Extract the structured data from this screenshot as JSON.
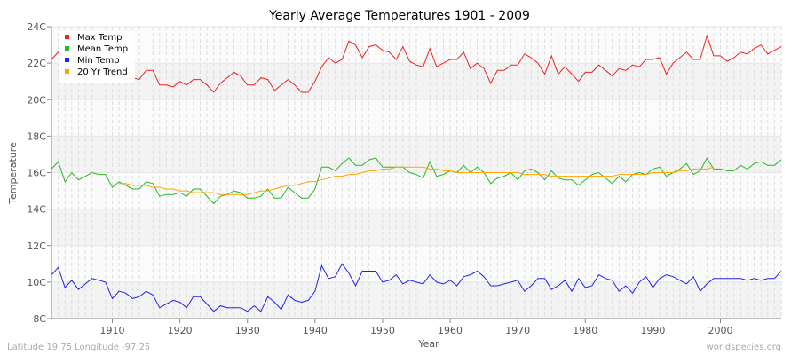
{
  "chart_data": {
    "type": "line",
    "title": "Yearly Average Temperatures 1901 - 2009",
    "xlabel": "Year",
    "ylabel": "Temperature",
    "xlim": [
      1901,
      2009
    ],
    "ylim": [
      8,
      24
    ],
    "x_ticks": [
      1910,
      1920,
      1930,
      1940,
      1950,
      1960,
      1970,
      1980,
      1990,
      2000
    ],
    "y_ticks": [
      8,
      10,
      12,
      14,
      16,
      18,
      20,
      22,
      24
    ],
    "y_tick_labels": [
      "8C",
      "10C",
      "12C",
      "14C",
      "16C",
      "18C",
      "20C",
      "22C",
      "24C"
    ],
    "grid": true,
    "legend_position": "top-left",
    "start_year": 1901,
    "series": [
      {
        "name": "Max Temp",
        "color": "#ee2222",
        "start": 1901,
        "values": [
          22.2,
          22.6,
          22.4,
          22.2,
          22.1,
          22.0,
          21.8,
          21.6,
          21.5,
          21.3,
          21.2,
          21.1,
          21.2,
          21.1,
          21.6,
          21.6,
          20.8,
          20.8,
          20.7,
          21.0,
          20.8,
          21.1,
          21.1,
          20.8,
          20.4,
          20.9,
          21.2,
          21.5,
          21.3,
          20.8,
          20.8,
          21.2,
          21.1,
          20.5,
          20.8,
          21.1,
          20.8,
          20.4,
          20.4,
          21.0,
          21.8,
          22.3,
          22.0,
          22.2,
          23.2,
          23.0,
          22.3,
          22.9,
          23.0,
          22.7,
          22.6,
          22.2,
          22.9,
          22.1,
          21.9,
          21.8,
          22.8,
          21.8,
          22.0,
          22.2,
          22.2,
          22.6,
          21.7,
          22.0,
          21.7,
          20.9,
          21.6,
          21.6,
          21.9,
          21.9,
          22.5,
          22.3,
          22.0,
          21.4,
          22.4,
          21.4,
          21.8,
          21.4,
          21.0,
          21.5,
          21.5,
          21.9,
          21.6,
          21.3,
          21.7,
          21.6,
          21.9,
          21.8,
          22.2,
          22.2,
          22.3,
          21.4,
          22.0,
          22.3,
          22.6,
          22.2,
          22.2,
          23.5,
          22.4,
          22.4,
          22.1,
          22.3,
          22.6,
          22.5,
          22.8,
          23.0,
          22.5,
          22.7,
          22.9
        ]
      },
      {
        "name": "Mean Temp",
        "color": "#22bb22",
        "start": 1901,
        "values": [
          16.2,
          16.6,
          15.5,
          16.0,
          15.6,
          15.8,
          16.0,
          15.9,
          15.9,
          15.2,
          15.5,
          15.3,
          15.1,
          15.1,
          15.5,
          15.4,
          14.7,
          14.8,
          14.8,
          14.9,
          14.7,
          15.1,
          15.1,
          14.7,
          14.3,
          14.7,
          14.8,
          15.0,
          14.9,
          14.6,
          14.6,
          14.7,
          15.1,
          14.6,
          14.6,
          15.2,
          14.9,
          14.6,
          14.6,
          15.1,
          16.3,
          16.3,
          16.1,
          16.5,
          16.8,
          16.4,
          16.4,
          16.7,
          16.8,
          16.3,
          16.3,
          16.3,
          16.3,
          16.0,
          15.9,
          15.7,
          16.6,
          15.8,
          15.9,
          16.1,
          16.0,
          16.4,
          16.0,
          16.3,
          16.0,
          15.4,
          15.7,
          15.8,
          16.0,
          15.6,
          16.1,
          16.2,
          16.0,
          15.6,
          16.1,
          15.7,
          15.6,
          15.6,
          15.3,
          15.6,
          15.9,
          16.0,
          15.7,
          15.4,
          15.8,
          15.5,
          15.9,
          16.0,
          15.9,
          16.2,
          16.3,
          15.8,
          16.0,
          16.2,
          16.5,
          15.9,
          16.1,
          16.8,
          16.2,
          16.2,
          16.1,
          16.1,
          16.4,
          16.2,
          16.5,
          16.6,
          16.4,
          16.4,
          16.7
        ]
      },
      {
        "name": "Min Temp",
        "color": "#2222ee",
        "start": 1901,
        "values": [
          10.4,
          10.8,
          9.7,
          10.1,
          9.6,
          9.9,
          10.2,
          10.1,
          10.0,
          9.1,
          9.5,
          9.4,
          9.1,
          9.2,
          9.5,
          9.3,
          8.6,
          8.8,
          9.0,
          8.9,
          8.6,
          9.2,
          9.2,
          8.8,
          8.4,
          8.7,
          8.6,
          8.6,
          8.6,
          8.4,
          8.7,
          8.4,
          9.2,
          8.9,
          8.5,
          9.3,
          9.0,
          8.9,
          9.0,
          9.5,
          10.9,
          10.2,
          10.3,
          11.0,
          10.5,
          9.8,
          10.6,
          10.6,
          10.6,
          10.0,
          10.1,
          10.4,
          9.9,
          10.1,
          10.0,
          9.9,
          10.4,
          10.0,
          9.9,
          10.1,
          9.8,
          10.3,
          10.4,
          10.6,
          10.3,
          9.8,
          9.8,
          9.9,
          10.0,
          10.1,
          9.5,
          9.8,
          10.2,
          10.2,
          9.6,
          9.8,
          10.1,
          9.5,
          10.2,
          9.7,
          9.8,
          10.4,
          10.2,
          10.1,
          9.5,
          9.8,
          9.4,
          10.0,
          10.3,
          9.7,
          10.2,
          10.4,
          10.3,
          10.1,
          9.9,
          10.3,
          9.5,
          9.9,
          10.2,
          10.2,
          10.2,
          10.2,
          10.2,
          10.1,
          10.2,
          10.1,
          10.2,
          10.2,
          10.6
        ]
      },
      {
        "name": "20 Yr Trend",
        "color": "#ffa500",
        "start": 1911,
        "values": [
          15.4,
          15.4,
          15.3,
          15.3,
          15.3,
          15.2,
          15.2,
          15.1,
          15.1,
          15.0,
          15.0,
          14.9,
          14.9,
          14.9,
          14.9,
          14.8,
          14.8,
          14.8,
          14.8,
          14.8,
          14.9,
          15.0,
          15.0,
          15.1,
          15.2,
          15.3,
          15.3,
          15.4,
          15.5,
          15.5,
          15.6,
          15.7,
          15.8,
          15.8,
          15.9,
          15.9,
          16.0,
          16.1,
          16.1,
          16.2,
          16.2,
          16.3,
          16.3,
          16.3,
          16.3,
          16.3,
          16.2,
          16.2,
          16.1,
          16.1,
          16.0,
          16.0,
          16.0,
          16.0,
          16.0,
          16.0,
          16.0,
          16.0,
          16.0,
          16.0,
          15.9,
          15.9,
          15.9,
          15.9,
          15.8,
          15.8,
          15.8,
          15.8,
          15.8,
          15.8,
          15.8,
          15.8,
          15.8,
          15.8,
          15.9,
          15.9,
          15.9,
          15.9,
          15.9,
          16.0,
          16.0,
          16.0,
          16.0,
          16.1,
          16.1,
          16.2,
          16.2,
          16.2,
          16.3
        ]
      }
    ]
  },
  "footer": {
    "location": "Latitude 19.75 Longitude -97.25",
    "source": "worldspecies.org"
  }
}
